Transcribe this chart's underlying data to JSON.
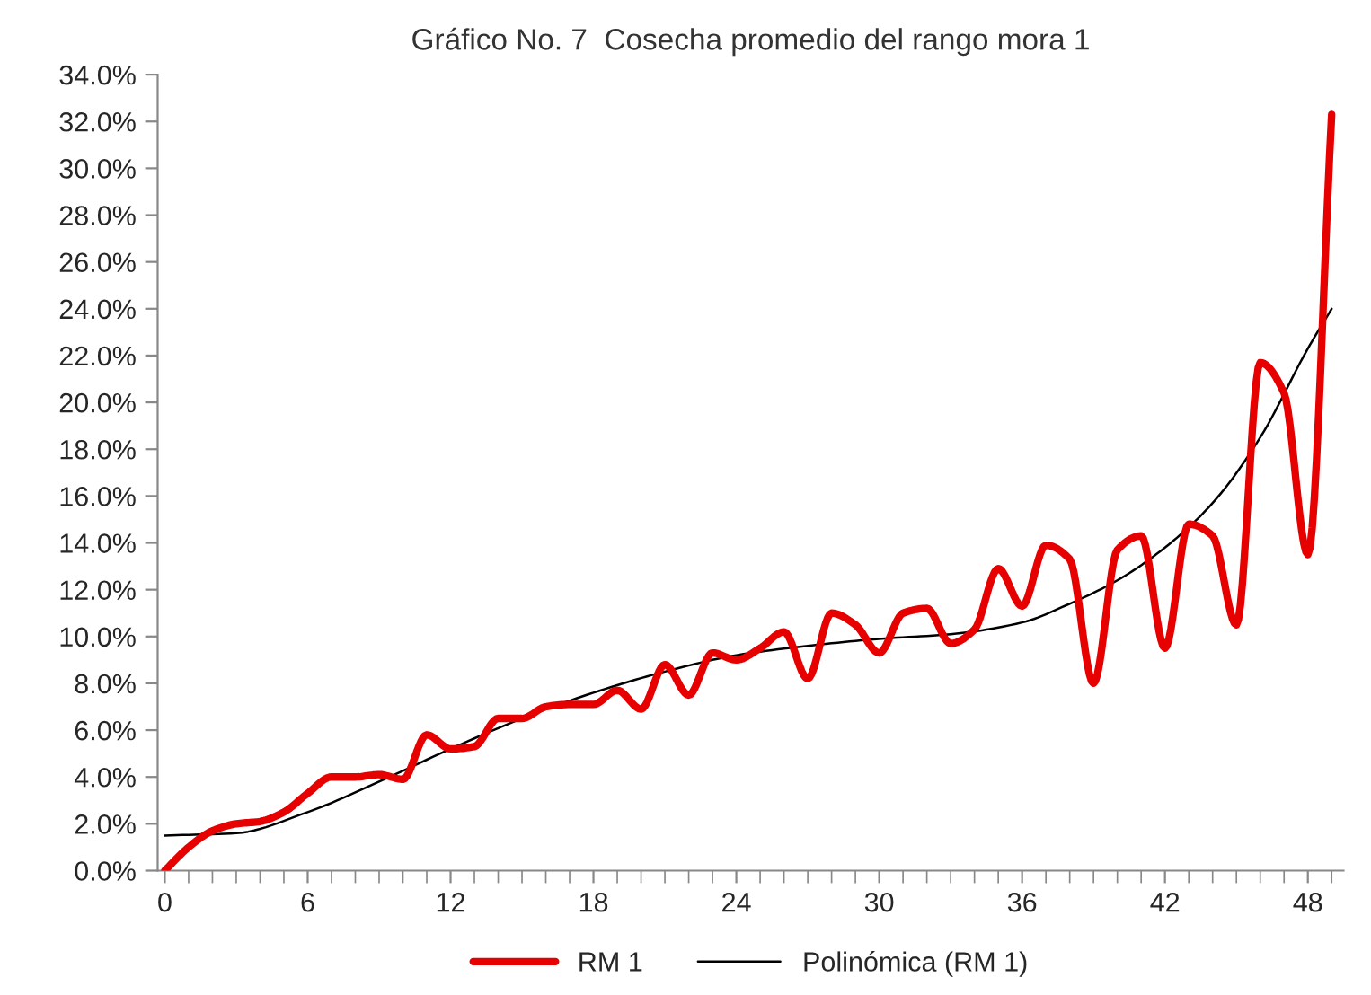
{
  "chart_data": {
    "type": "line",
    "title": "Gráfico No. 7  Cosecha promedio del rango mora 1",
    "x": [
      0,
      1,
      2,
      3,
      4,
      5,
      6,
      7,
      8,
      9,
      10,
      11,
      12,
      13,
      14,
      15,
      16,
      17,
      18,
      19,
      20,
      21,
      22,
      23,
      24,
      25,
      26,
      27,
      28,
      29,
      30,
      31,
      32,
      33,
      34,
      35,
      36,
      37,
      38,
      39,
      40,
      41,
      42,
      43,
      44,
      45,
      46,
      47,
      48,
      49
    ],
    "series": [
      {
        "name": "RM 1",
        "color": "#e60000",
        "values": [
          0.0,
          1.0,
          1.7,
          2.0,
          2.1,
          2.5,
          3.3,
          4.0,
          4.0,
          4.1,
          3.9,
          5.8,
          5.2,
          5.3,
          6.5,
          6.5,
          7.0,
          7.1,
          7.1,
          7.7,
          6.9,
          8.8,
          7.5,
          9.3,
          9.0,
          9.5,
          10.2,
          8.2,
          11.0,
          10.5,
          9.3,
          11.0,
          11.2,
          9.7,
          10.3,
          12.9,
          11.3,
          13.9,
          13.3,
          8.0,
          13.7,
          14.3,
          9.5,
          14.8,
          14.3,
          10.5,
          21.7,
          20.4,
          13.5,
          32.3
        ]
      },
      {
        "name": "Polinómica (RM 1)",
        "color": "#000000",
        "x": [
          0,
          3,
          6,
          9,
          12,
          15,
          18,
          21,
          24,
          27,
          30,
          33,
          36,
          38,
          40,
          42,
          44,
          46,
          48,
          49
        ],
        "values": [
          1.5,
          1.6,
          2.5,
          3.8,
          5.2,
          6.5,
          7.6,
          8.5,
          9.2,
          9.6,
          9.9,
          10.1,
          10.6,
          11.4,
          12.4,
          13.8,
          15.7,
          18.5,
          22.3,
          24.0
        ]
      }
    ],
    "xlim": [
      -0.3,
      49.5
    ],
    "xticks": [
      0,
      6,
      12,
      18,
      24,
      30,
      36,
      42,
      48
    ],
    "ylim": [
      0,
      34
    ],
    "yticks": [
      {
        "value": 0,
        "label": "0.0%"
      },
      {
        "value": 2,
        "label": "2.0%"
      },
      {
        "value": 4,
        "label": "4.0%"
      },
      {
        "value": 6,
        "label": "6.0%"
      },
      {
        "value": 8,
        "label": "8.0%"
      },
      {
        "value": 10,
        "label": "10.0%"
      },
      {
        "value": 12,
        "label": "12.0%"
      },
      {
        "value": 14,
        "label": "14.0%"
      },
      {
        "value": 16,
        "label": "16.0%"
      },
      {
        "value": 18,
        "label": "18.0%"
      },
      {
        "value": 20,
        "label": "20.0%"
      },
      {
        "value": 22,
        "label": "22.0%"
      },
      {
        "value": 24,
        "label": "24.0%"
      },
      {
        "value": 26,
        "label": "26.0%"
      },
      {
        "value": 28,
        "label": "28.0%"
      },
      {
        "value": 30,
        "label": "30.0%"
      },
      {
        "value": 32,
        "label": "32.0%"
      },
      {
        "value": 34,
        "label": "34.0%"
      }
    ],
    "grid": false,
    "legend": "bottom",
    "line_style": "solid"
  }
}
